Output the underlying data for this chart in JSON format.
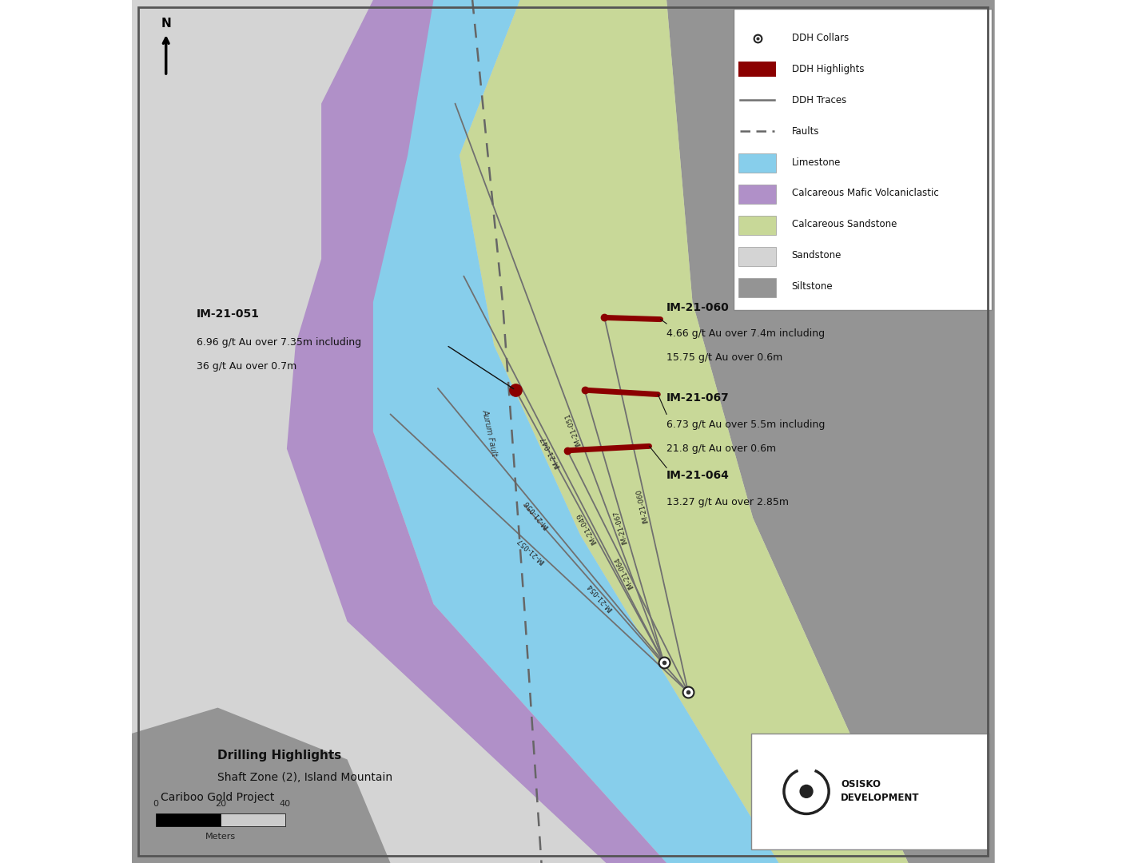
{
  "fig_width": 14.09,
  "fig_height": 10.8,
  "colors": {
    "sandstone": "#d4d4d4",
    "limestone": "#87ceeb",
    "calcareous_mafic": "#b090c8",
    "calcareous_sandstone": "#c8d898",
    "siltstone": "#949494",
    "background": "#d8d8d8"
  },
  "bottom_text_line1": "Drilling Highlights",
  "bottom_text_line2": "Shaft Zone (2), Island Mountain",
  "bottom_text_line3": "Cariboo Gold Project"
}
